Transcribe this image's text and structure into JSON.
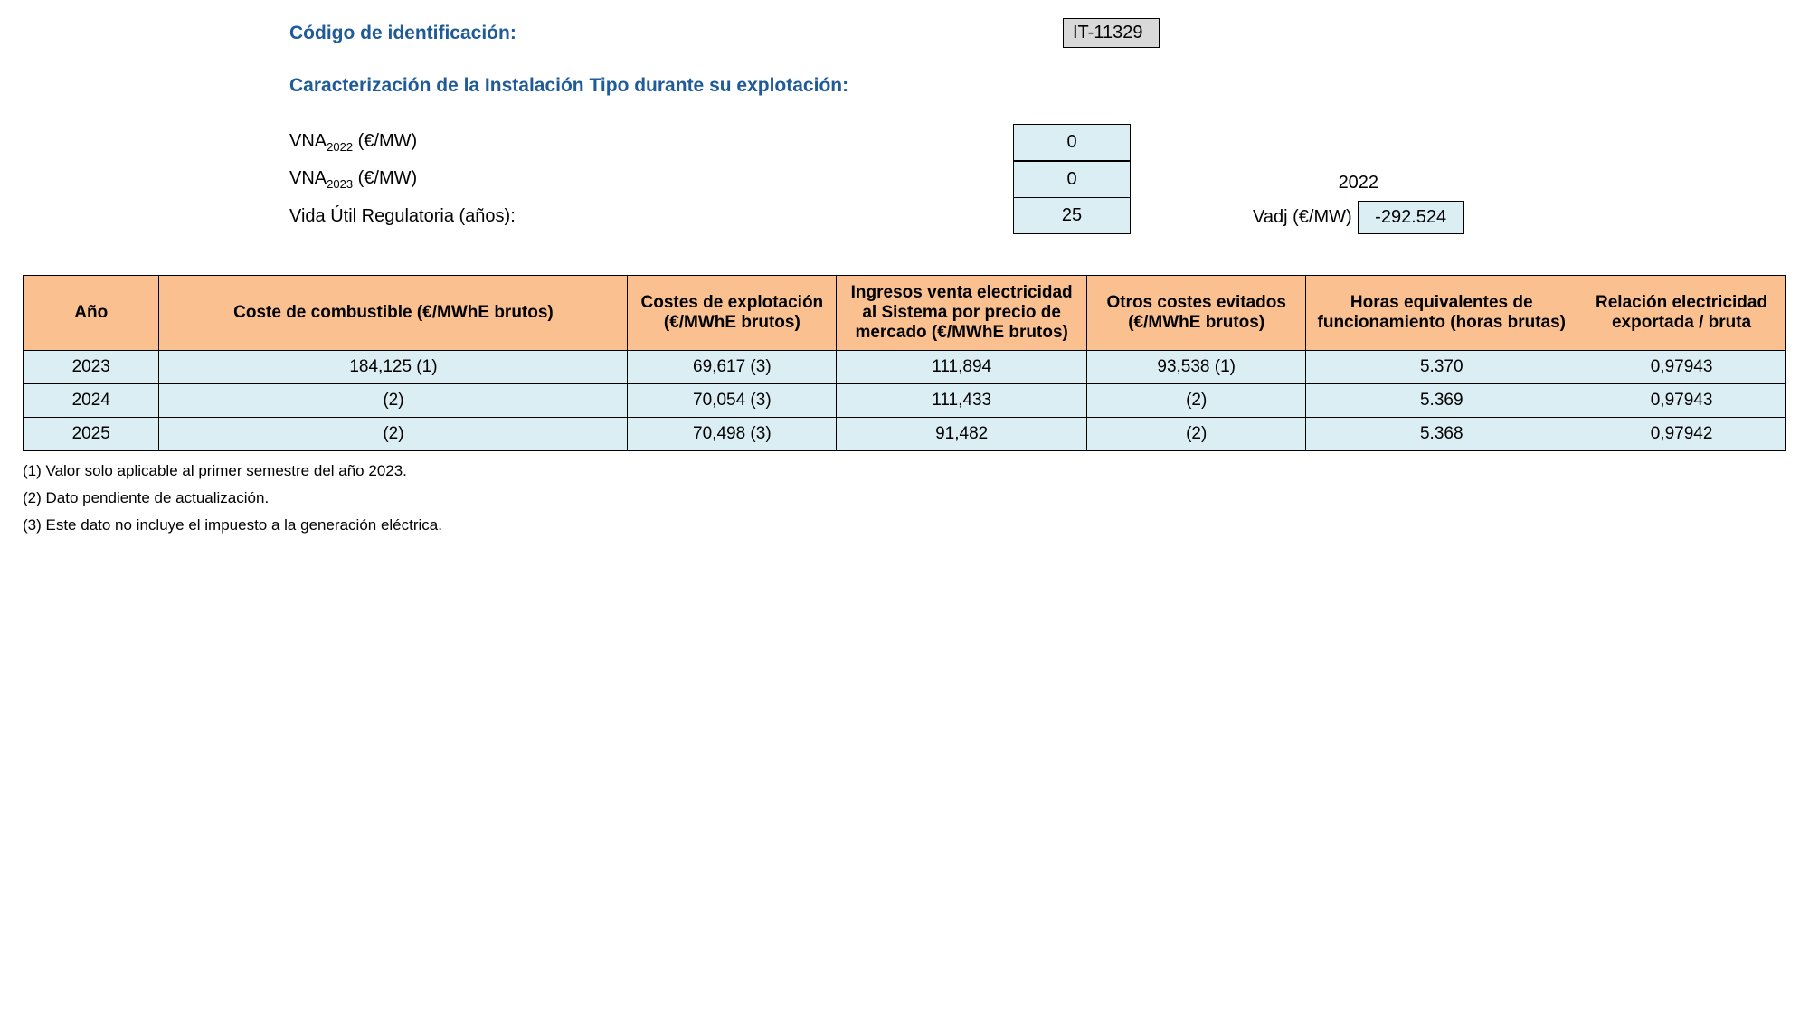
{
  "header": {
    "id_label": "Código de identificación:",
    "id_value": "IT-11329",
    "caract_label": "Caracterización de la Instalación Tipo durante su explotación:"
  },
  "params": {
    "vna2022_label_pre": "VNA",
    "vna2022_sub": "2022",
    "vna2022_label_post": " (€/MW)",
    "vna2022_val": "0",
    "vna2023_label_pre": "VNA",
    "vna2023_sub": "2023",
    "vna2023_label_post": " (€/MW)",
    "vna2023_val": "0",
    "vida_label": "Vida Útil Regulatoria (años):",
    "vida_val": "25",
    "side_year": "2022",
    "vadj_label": "Vadj (€/MW)",
    "vadj_val": "-292.524"
  },
  "table": {
    "columns": [
      "Año",
      "Coste de combustible (€/MWhE brutos)",
      "Costes de explotación (€/MWhE brutos)",
      "Ingresos venta electricidad al Sistema por precio de mercado (€/MWhE brutos)",
      "Otros costes evitados (€/MWhE brutos)",
      "Horas equivalentes de funcionamiento (horas brutas)",
      "Relación electricidad exportada / bruta"
    ],
    "rows": [
      [
        "2023",
        "184,125 (1)",
        "69,617 (3)",
        "111,894",
        "93,538 (1)",
        "5.370",
        "0,97943"
      ],
      [
        "2024",
        "(2)",
        "70,054 (3)",
        "111,433",
        "(2)",
        "5.369",
        "0,97943"
      ],
      [
        "2025",
        "(2)",
        "70,498 (3)",
        "91,482",
        "(2)",
        "5.368",
        "0,97942"
      ]
    ]
  },
  "footnotes": [
    "(1) Valor solo aplicable al primer semestre del año 2023.",
    "(2) Dato pendiente de actualización.",
    "(3) Este dato no incluye el impuesto a la generación eléctrica."
  ]
}
